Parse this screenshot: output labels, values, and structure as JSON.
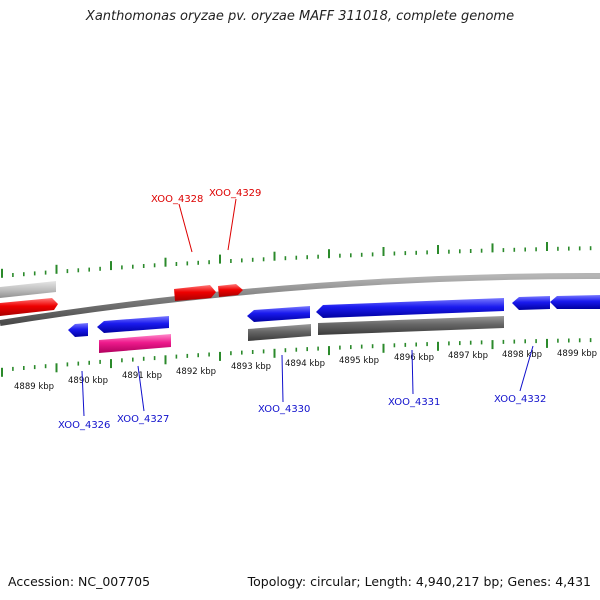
{
  "title": "Xanthomonas oryzae pv. oryzae MAFF 311018, complete genome",
  "footer": {
    "accession": "Accession: NC_007705",
    "summary": "Topology: circular; Length: 4,940,217 bp; Genes: 4,431"
  },
  "colors": {
    "forward_gene": "#ee0000",
    "reverse_gene": "#1a1aee",
    "pink_gene": "#ee1a8c",
    "gray_gene": "#666666",
    "light_gray_gene": "#c0c0c0",
    "ticks": "#2b8a2b",
    "backbone": "#7a7a7a",
    "top_labels": "#dd0000",
    "bottom_labels": "#1010cc"
  },
  "kbp_labels": [
    "4889 kbp",
    "4890 kbp",
    "4891 kbp",
    "4892 kbp",
    "4893 kbp",
    "4894 kbp",
    "4895 kbp",
    "4896 kbp",
    "4897 kbp",
    "4898 kbp",
    "4899 kbp"
  ],
  "top_gene_labels": [
    "XOO_4328",
    "XOO_4329"
  ],
  "bottom_gene_labels": [
    "XOO_4326",
    "XOO_4327",
    "XOO_4330",
    "XOO_4331",
    "XOO_4332"
  ]
}
